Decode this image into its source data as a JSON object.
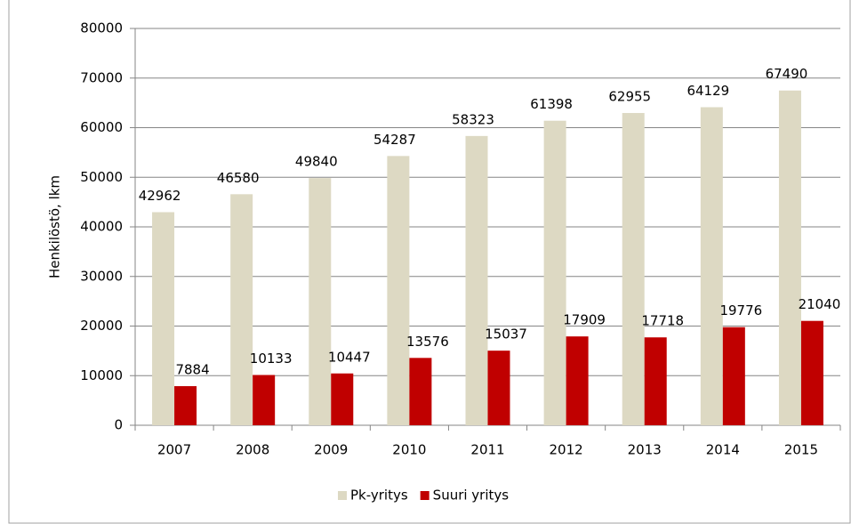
{
  "chart_data": {
    "type": "bar",
    "y_label": "Henkilöstö, lkm",
    "categories": [
      "2007",
      "2008",
      "2009",
      "2010",
      "2011",
      "2012",
      "2013",
      "2014",
      "2015"
    ],
    "series": [
      {
        "name": "Pk-yritys",
        "color": "#ddd9c3",
        "values": [
          42962,
          46580,
          49840,
          54287,
          58323,
          61398,
          62955,
          64129,
          67490
        ]
      },
      {
        "name": "Suuri yritys",
        "color": "#c00000",
        "values": [
          7884,
          10133,
          10447,
          13576,
          15037,
          17909,
          17718,
          19776,
          21040
        ]
      }
    ],
    "ylim": [
      0,
      80000
    ],
    "yticks": [
      0,
      10000,
      20000,
      30000,
      40000,
      50000,
      60000,
      70000,
      80000
    ],
    "grid": true,
    "legend": "bottom"
  }
}
